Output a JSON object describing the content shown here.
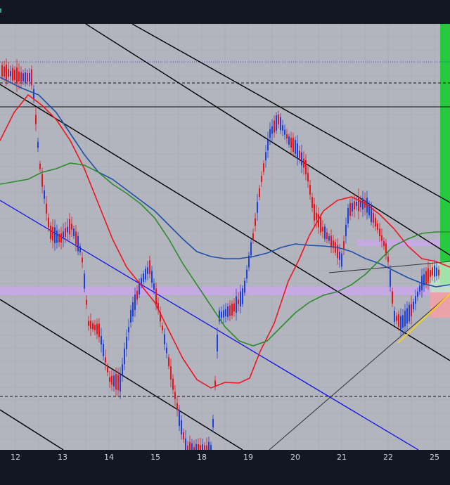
{
  "chart_data": {
    "type": "candlestick",
    "title": "",
    "xlabel": "",
    "ylabel": "",
    "x_tick_labels": [
      "12",
      "13",
      "14",
      "15",
      "18",
      "19",
      "20",
      "21",
      "22",
      "25"
    ],
    "grid": true,
    "colors": {
      "background": "#b2b5be",
      "up_candle": "#1e3fd8",
      "down_candle": "#e8141c",
      "ma_fast": "#f0141e",
      "ma_mid": "#1f4fa8",
      "ma_slow": "#2e8b2e",
      "trend_line_blue": "#1414e6",
      "support_line_yellow": "#ffd400",
      "zone_purple": "#c8a6e6",
      "zone_green": "#27c93f"
    },
    "series": [
      {
        "kind": "candles",
        "direction": "down-then-up",
        "sessions": [
          "12",
          "13",
          "14",
          "15",
          "18",
          "19",
          "20",
          "21",
          "22",
          "25"
        ]
      },
      {
        "kind": "moving-average",
        "role": "fast"
      },
      {
        "kind": "moving-average",
        "role": "medium"
      },
      {
        "kind": "moving-average",
        "role": "slow"
      }
    ],
    "annotations": [
      "descending parallel channel",
      "blue descending trend line",
      "horizontal resistance lines",
      "purple horizontal zone",
      "green long zone",
      "red short zone",
      "yellow rising support line"
    ]
  }
}
